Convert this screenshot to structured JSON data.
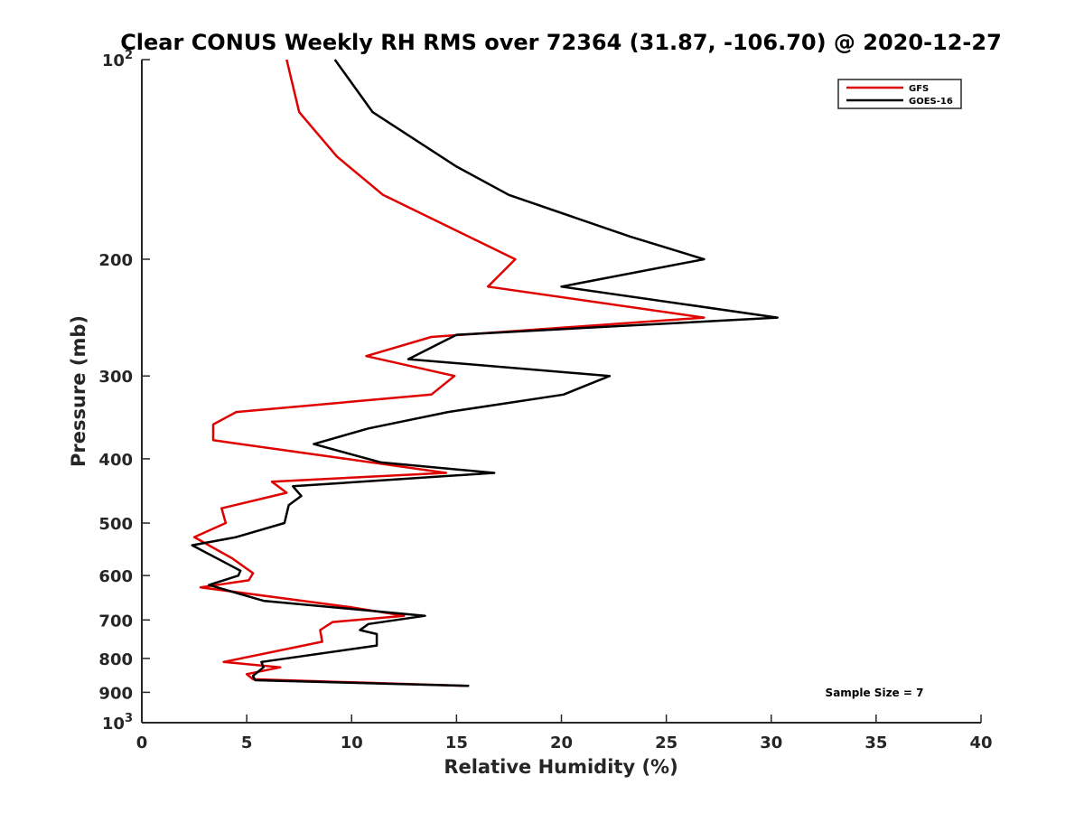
{
  "chart_data": {
    "type": "line",
    "title": "Clear CONUS Weekly RH RMS over 72364 (31.87, -106.70) @ 2020-12-27",
    "xlabel": "Relative Humidity (%)",
    "ylabel": "Pressure (mb)",
    "xlim": [
      0,
      40
    ],
    "ylim": [
      100,
      1000
    ],
    "yscale": "log",
    "y_reversed": true,
    "grid": false,
    "xticks": [
      "0",
      "5",
      "10",
      "15",
      "20",
      "25",
      "30",
      "35",
      "40"
    ],
    "xtick_values": [
      0,
      5,
      10,
      15,
      20,
      25,
      30,
      35,
      40
    ],
    "yticks": [
      {
        "value": 100,
        "base": "10",
        "exp": "2"
      },
      {
        "value": 200,
        "label": "200"
      },
      {
        "value": 300,
        "label": "300"
      },
      {
        "value": 400,
        "label": "400"
      },
      {
        "value": 500,
        "label": "500"
      },
      {
        "value": 600,
        "label": "600"
      },
      {
        "value": 700,
        "label": "700"
      },
      {
        "value": 800,
        "label": "800"
      },
      {
        "value": 900,
        "label": "900"
      },
      {
        "value": 1000,
        "base": "10",
        "exp": "3"
      }
    ],
    "legend": {
      "placement": "top-right",
      "entries": [
        {
          "name": "GFS",
          "color": "#e00000"
        },
        {
          "name": "GOES-16",
          "color": "#000000"
        }
      ]
    },
    "annotation": "Sample Size = 7",
    "series": [
      {
        "name": "GFS",
        "color": "#e00000",
        "points": [
          {
            "x": 6.9,
            "p": 100
          },
          {
            "x": 7.5,
            "p": 120
          },
          {
            "x": 9.3,
            "p": 140
          },
          {
            "x": 11.5,
            "p": 160
          },
          {
            "x": 17.8,
            "p": 200
          },
          {
            "x": 16.5,
            "p": 220
          },
          {
            "x": 26.8,
            "p": 245
          },
          {
            "x": 13.8,
            "p": 262
          },
          {
            "x": 10.7,
            "p": 280
          },
          {
            "x": 14.9,
            "p": 300
          },
          {
            "x": 13.8,
            "p": 320
          },
          {
            "x": 4.5,
            "p": 340
          },
          {
            "x": 3.4,
            "p": 355
          },
          {
            "x": 3.4,
            "p": 375
          },
          {
            "x": 14.5,
            "p": 420
          },
          {
            "x": 6.2,
            "p": 433
          },
          {
            "x": 6.9,
            "p": 450
          },
          {
            "x": 3.8,
            "p": 475
          },
          {
            "x": 4.0,
            "p": 500
          },
          {
            "x": 2.5,
            "p": 525
          },
          {
            "x": 4.3,
            "p": 565
          },
          {
            "x": 5.3,
            "p": 595
          },
          {
            "x": 5.1,
            "p": 610
          },
          {
            "x": 2.8,
            "p": 625
          },
          {
            "x": 10.0,
            "p": 670
          },
          {
            "x": 12.5,
            "p": 690
          },
          {
            "x": 9.1,
            "p": 705
          },
          {
            "x": 8.5,
            "p": 725
          },
          {
            "x": 8.6,
            "p": 755
          },
          {
            "x": 3.9,
            "p": 810
          },
          {
            "x": 6.6,
            "p": 825
          },
          {
            "x": 5.0,
            "p": 845
          },
          {
            "x": 5.3,
            "p": 860
          },
          {
            "x": 15.5,
            "p": 880
          }
        ]
      },
      {
        "name": "GOES-16",
        "color": "#000000",
        "points": [
          {
            "x": 9.2,
            "p": 100
          },
          {
            "x": 11.0,
            "p": 120
          },
          {
            "x": 15.0,
            "p": 145
          },
          {
            "x": 17.5,
            "p": 160
          },
          {
            "x": 23.3,
            "p": 185
          },
          {
            "x": 26.8,
            "p": 200
          },
          {
            "x": 20.0,
            "p": 220
          },
          {
            "x": 30.3,
            "p": 245
          },
          {
            "x": 15.0,
            "p": 260
          },
          {
            "x": 12.7,
            "p": 283
          },
          {
            "x": 22.3,
            "p": 300
          },
          {
            "x": 20.1,
            "p": 320
          },
          {
            "x": 14.6,
            "p": 340
          },
          {
            "x": 10.8,
            "p": 360
          },
          {
            "x": 8.2,
            "p": 380
          },
          {
            "x": 11.4,
            "p": 405
          },
          {
            "x": 16.8,
            "p": 420
          },
          {
            "x": 7.2,
            "p": 440
          },
          {
            "x": 7.6,
            "p": 455
          },
          {
            "x": 7.0,
            "p": 470
          },
          {
            "x": 6.8,
            "p": 500
          },
          {
            "x": 4.5,
            "p": 525
          },
          {
            "x": 2.4,
            "p": 540
          },
          {
            "x": 4.7,
            "p": 590
          },
          {
            "x": 4.6,
            "p": 600
          },
          {
            "x": 3.2,
            "p": 620
          },
          {
            "x": 5.8,
            "p": 655
          },
          {
            "x": 13.5,
            "p": 690
          },
          {
            "x": 10.8,
            "p": 710
          },
          {
            "x": 10.4,
            "p": 725
          },
          {
            "x": 11.2,
            "p": 735
          },
          {
            "x": 11.2,
            "p": 765
          },
          {
            "x": 5.7,
            "p": 810
          },
          {
            "x": 5.8,
            "p": 825
          },
          {
            "x": 5.3,
            "p": 850
          },
          {
            "x": 5.4,
            "p": 863
          },
          {
            "x": 15.6,
            "p": 880
          }
        ]
      }
    ]
  }
}
